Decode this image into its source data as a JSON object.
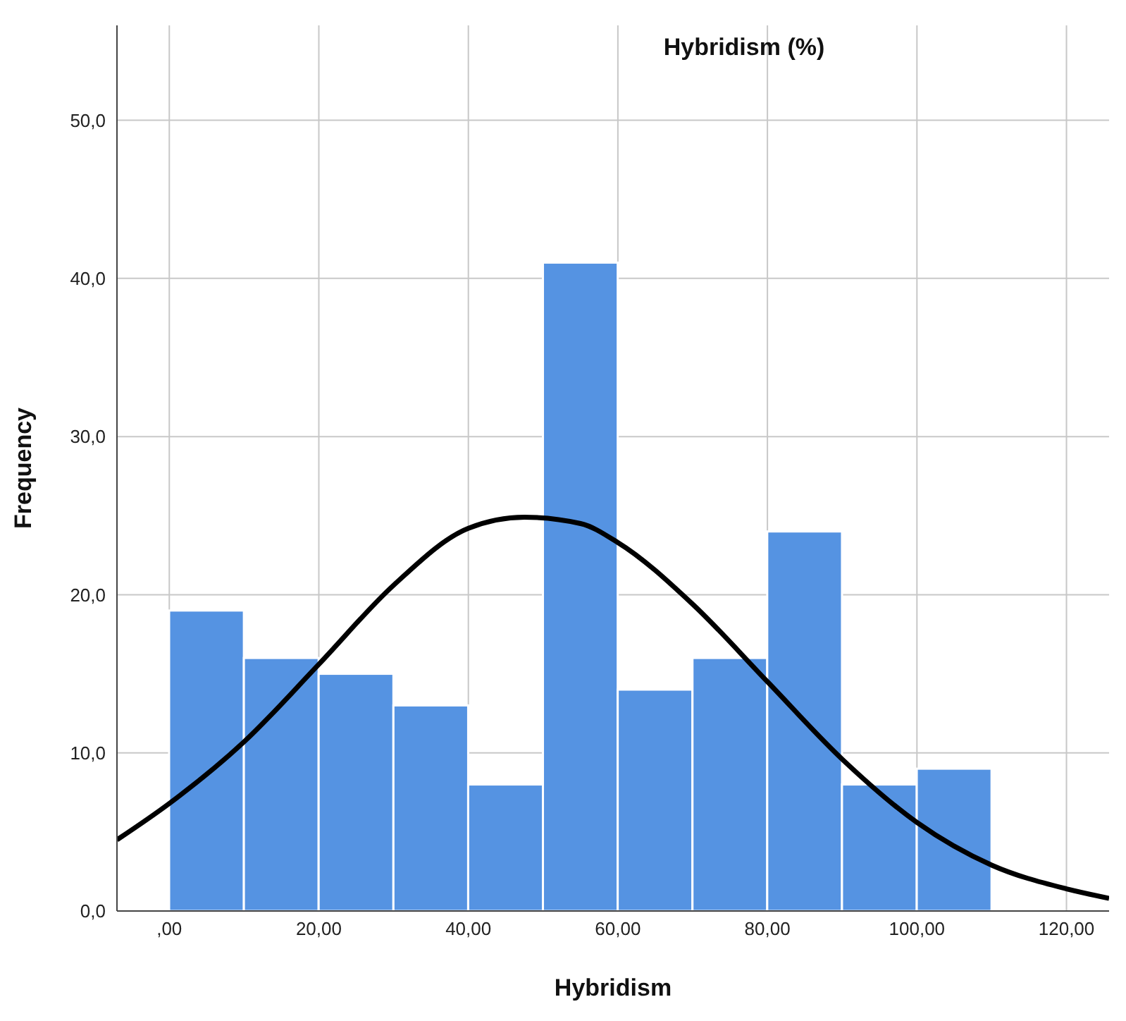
{
  "chart_data": {
    "type": "histogram",
    "title": "Hybridism (%)",
    "xlabel": "Hybridism",
    "ylabel": "Frequency",
    "bins": [
      0,
      10,
      20,
      30,
      40,
      50,
      60,
      70,
      80,
      90,
      100,
      110
    ],
    "series": [
      {
        "color": "#5593e2",
        "values": [
          19,
          16,
          15,
          13,
          8,
          41,
          14,
          16,
          24,
          8,
          9
        ]
      },
      {
        "type": "line",
        "color": "#000000",
        "x": [
          -7,
          0,
          10,
          20,
          30,
          40,
          47.5,
          55,
          60,
          70,
          80,
          90,
          100,
          110,
          120,
          125.7
        ],
        "values": [
          4.5,
          6.8,
          10.7,
          15.6,
          20.6,
          24.2,
          24.9,
          24.5,
          23.3,
          19.4,
          14.5,
          9.6,
          5.6,
          2.9,
          1.4,
          0.8
        ]
      }
    ],
    "xlim": [
      -7,
      125.7
    ],
    "xticks": [
      {
        "value": 0,
        "label": ",00"
      },
      {
        "value": 20,
        "label": "20,00"
      },
      {
        "value": 40,
        "label": "40,00"
      },
      {
        "value": 60,
        "label": "60,00"
      },
      {
        "value": 80,
        "label": "80,00"
      },
      {
        "value": 100,
        "label": "100,00"
      },
      {
        "value": 120,
        "label": "120,00"
      }
    ],
    "ylim": [
      0,
      56
    ],
    "yticks": [
      {
        "value": 0,
        "label": "0,0"
      },
      {
        "value": 10,
        "label": "10,0"
      },
      {
        "value": 20,
        "label": "20,0"
      },
      {
        "value": 30,
        "label": "30,0"
      },
      {
        "value": 40,
        "label": "40,0"
      },
      {
        "value": 50,
        "label": "50,0"
      }
    ],
    "grid": true
  }
}
